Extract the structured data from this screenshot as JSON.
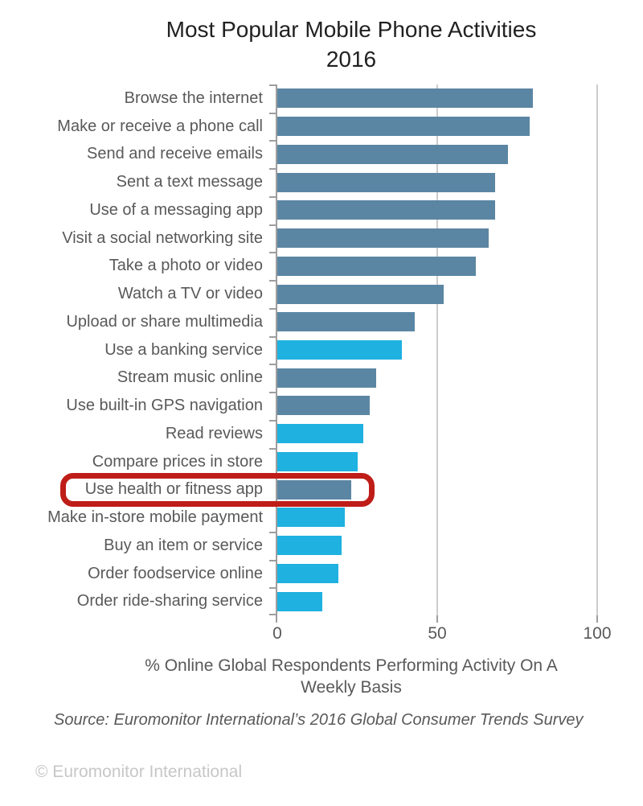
{
  "title": {
    "line1": "Most Popular Mobile Phone Activities",
    "line2": "2016"
  },
  "colors": {
    "steel": "#5b86a3",
    "cyan": "#1fb1e0",
    "highlight_box": "#bf1d18",
    "axis": "#9e9e9e",
    "gridline": "#cccccc"
  },
  "chart_data": {
    "type": "bar",
    "orientation": "horizontal",
    "title": "Most Popular Mobile Phone Activities 2016",
    "xlabel": "% Online Global Respondents Performing Activity On A Weekly Basis",
    "ylabel": "",
    "xlim": [
      0,
      107
    ],
    "xticks": [
      0,
      50,
      100
    ],
    "grid": "vertical gridlines at 50 and 100",
    "legend": "none",
    "categories": [
      "Browse the internet",
      "Make or receive a phone call",
      "Send and receive emails",
      "Sent a text message",
      "Use of a messaging app",
      "Visit a social networking site",
      "Take a photo or video",
      "Watch a TV or video",
      "Upload or share multimedia",
      "Use a banking service",
      "Stream music online",
      "Use built-in GPS navigation",
      "Read reviews",
      "Compare prices in store",
      "Use health or fitness app",
      "Make in-store mobile payment",
      "Buy an item or service",
      "Order foodservice online",
      "Order ride-sharing service"
    ],
    "values": [
      80,
      79,
      72,
      68,
      68,
      66,
      62,
      52,
      43,
      39,
      31,
      29,
      27,
      25,
      23,
      21,
      20,
      19,
      14
    ],
    "bar_colors": [
      "steel",
      "steel",
      "steel",
      "steel",
      "steel",
      "steel",
      "steel",
      "steel",
      "steel",
      "cyan",
      "steel",
      "steel",
      "cyan",
      "cyan",
      "steel",
      "cyan",
      "cyan",
      "cyan",
      "cyan"
    ],
    "highlighted_category": "Use health or fitness app"
  },
  "x_axis": {
    "tick_labels": [
      "0",
      "50",
      "100"
    ],
    "caption_line1": "% Online Global Respondents Performing Activity On A",
    "caption_line2": "Weekly Basis"
  },
  "source": "Source: Euromonitor International’s 2016 Global Consumer Trends Survey",
  "copyright": "© Euromonitor International"
}
